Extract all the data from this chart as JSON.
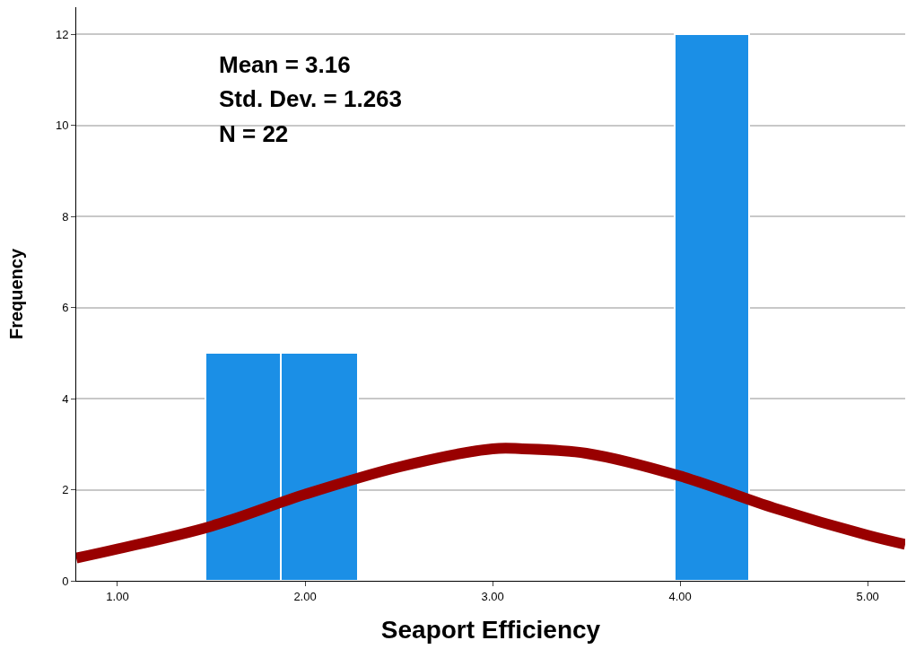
{
  "chart_data": {
    "type": "histogram",
    "xlabel": "Seaport Efficiency",
    "ylabel": "Frequency",
    "annotations": [
      "Mean = 3.16",
      "Std. Dev. = 1.263",
      "N = 22"
    ],
    "series": [
      {
        "type": "histogram",
        "bins": [
          1.47,
          1.87,
          2.28,
          3.97,
          4.37
        ],
        "values": [
          5,
          5,
          0,
          12
        ],
        "color": "#1b8fe6"
      },
      {
        "type": "line",
        "color": "#990000",
        "x": [
          0.78,
          1.0,
          1.5,
          2.0,
          2.5,
          3.0,
          3.16,
          3.5,
          4.0,
          4.5,
          5.0,
          5.2
        ],
        "values": [
          0.5,
          0.7,
          1.2,
          1.9,
          2.5,
          2.9,
          2.9,
          2.8,
          2.3,
          1.6,
          1.0,
          0.8
        ]
      }
    ],
    "xlim": [
      0.78,
      5.2
    ],
    "xticks": [
      {
        "value": 1,
        "label": "1.00"
      },
      {
        "value": 2,
        "label": "2.00"
      },
      {
        "value": 3,
        "label": "3.00"
      },
      {
        "value": 4,
        "label": "4.00"
      },
      {
        "value": 5,
        "label": "5.00"
      }
    ],
    "ylim": [
      0,
      12.6
    ],
    "yticks": [
      0,
      2,
      4,
      6,
      8,
      10,
      12
    ],
    "grid": "y",
    "marker": "none"
  }
}
